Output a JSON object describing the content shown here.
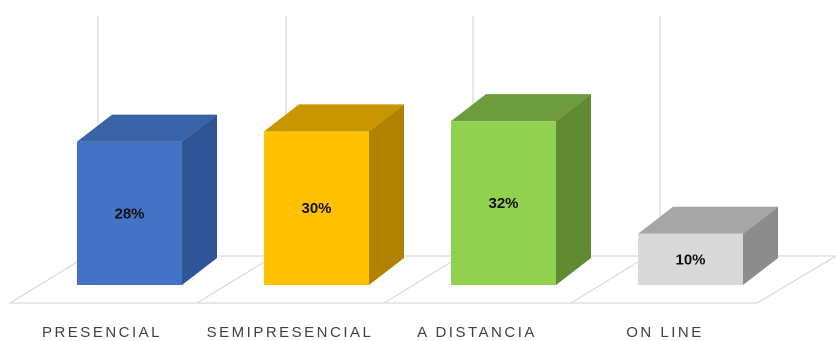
{
  "chart_data": {
    "type": "bar",
    "style": "3d-column",
    "categories": [
      "PRESENCIAL",
      "SEMIPRESENCIAL",
      "A DISTANCIA",
      "ON LINE"
    ],
    "values": [
      28,
      30,
      32,
      10
    ],
    "value_labels": [
      "28%",
      "30%",
      "32%",
      "10%"
    ],
    "unit": "%",
    "title": "",
    "xlabel": "",
    "ylabel": "",
    "ylim": [
      0,
      40
    ],
    "grid": true,
    "legend": "none",
    "colors": {
      "front": [
        "#4472c4",
        "#ffc000",
        "#92d050",
        "#d9d9d9"
      ],
      "side": [
        "#2f5597",
        "#b08200",
        "#5f8a32",
        "#8c8c8c"
      ],
      "top": [
        "#3a62a7",
        "#c79600",
        "#6e9b3c",
        "#a6a6a6"
      ],
      "gridline": "#d9d9d9",
      "label_text": "#404040",
      "value_text": "#111111"
    }
  }
}
